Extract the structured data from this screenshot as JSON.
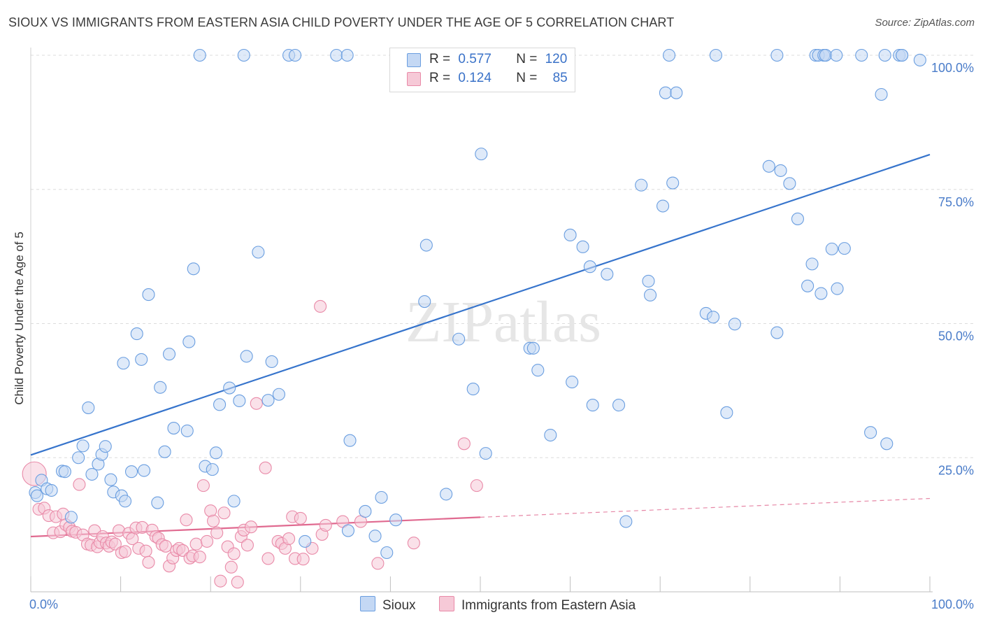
{
  "title": "SIOUX VS IMMIGRANTS FROM EASTERN ASIA CHILD POVERTY UNDER THE AGE OF 5 CORRELATION CHART",
  "source": "Source: ZipAtlas.com",
  "watermark": "ZIPatlas",
  "colors": {
    "blue": "#6a9ee0",
    "blue_fill": "#c4d8f4",
    "blue_line": "#3674cc",
    "pink": "#e98aa8",
    "pink_fill": "#f6c9d7",
    "pink_line": "#e06a90",
    "tick_label": "#4a7cc9"
  },
  "legend": {
    "rows": [
      {
        "r_label": "R =",
        "r_value": "0.577",
        "n_label": "N =",
        "n_value": "120"
      },
      {
        "r_label": "R =",
        "r_value": "0.124",
        "n_label": "N =",
        "n_value": "85"
      }
    ]
  },
  "bottom_legend": [
    "Sioux",
    "Immigrants from Eastern Asia"
  ],
  "chart_data": {
    "type": "scatter",
    "title": "SIOUX VS IMMIGRANTS FROM EASTERN ASIA CHILD POVERTY UNDER THE AGE OF 5 CORRELATION CHART",
    "xlabel": "",
    "ylabel": "Child Poverty Under the Age of 5",
    "xlim": [
      0,
      100
    ],
    "ylim": [
      0,
      100
    ],
    "x_tick_labels": [
      "0.0%",
      "100.0%"
    ],
    "y_tick_labels": [
      {
        "value": 100,
        "label": "100.0%"
      },
      {
        "value": 75,
        "label": "75.0%"
      },
      {
        "value": 50,
        "label": "50.0%"
      },
      {
        "value": 25,
        "label": "25.0%"
      }
    ],
    "series": [
      {
        "name": "Sioux",
        "color": "#6a9ee0",
        "trend": {
          "x0": 0,
          "y0": 25.5,
          "x1": 100,
          "y1": 81.5
        },
        "points": [
          [
            0.5,
            18.5
          ],
          [
            0.7,
            17.9
          ],
          [
            1.2,
            20.8
          ],
          [
            1.8,
            19.2
          ],
          [
            2.3,
            18.9
          ],
          [
            3.5,
            22.5
          ],
          [
            3.8,
            22.4
          ],
          [
            4.5,
            13.9
          ],
          [
            5.3,
            25.0
          ],
          [
            5.8,
            27.2
          ],
          [
            6.4,
            34.3
          ],
          [
            6.8,
            21.9
          ],
          [
            7.5,
            23.8
          ],
          [
            7.9,
            25.6
          ],
          [
            8.3,
            27.1
          ],
          [
            8.9,
            20.9
          ],
          [
            9.2,
            18.6
          ],
          [
            10.1,
            17.9
          ],
          [
            10.5,
            16.9
          ],
          [
            10.3,
            42.6
          ],
          [
            11.2,
            22.4
          ],
          [
            11.8,
            48.1
          ],
          [
            12.3,
            43.3
          ],
          [
            12.6,
            22.6
          ],
          [
            13.1,
            55.4
          ],
          [
            14.1,
            16.6
          ],
          [
            14.4,
            38.1
          ],
          [
            14.9,
            26.1
          ],
          [
            15.4,
            44.3
          ],
          [
            15.9,
            30.5
          ],
          [
            17.4,
            30.0
          ],
          [
            17.6,
            46.6
          ],
          [
            18.1,
            60.2
          ],
          [
            19.4,
            23.4
          ],
          [
            20.2,
            22.8
          ],
          [
            20.6,
            25.9
          ],
          [
            21.0,
            34.9
          ],
          [
            22.1,
            38.0
          ],
          [
            22.6,
            16.9
          ],
          [
            23.2,
            35.6
          ],
          [
            24.0,
            43.9
          ],
          [
            25.3,
            63.3
          ],
          [
            26.4,
            35.7
          ],
          [
            26.8,
            42.9
          ],
          [
            27.6,
            36.8
          ],
          [
            30.5,
            9.4
          ],
          [
            35.3,
            11.4
          ],
          [
            35.5,
            28.2
          ],
          [
            37.2,
            15.0
          ],
          [
            38.3,
            10.4
          ],
          [
            39.0,
            17.6
          ],
          [
            39.6,
            7.3
          ],
          [
            40.6,
            13.4
          ],
          [
            43.8,
            54.1
          ],
          [
            44.0,
            64.6
          ],
          [
            46.2,
            18.2
          ],
          [
            47.6,
            47.1
          ],
          [
            49.2,
            37.8
          ],
          [
            50.1,
            81.6
          ],
          [
            50.6,
            25.8
          ],
          [
            55.5,
            45.4
          ],
          [
            55.9,
            45.4
          ],
          [
            56.4,
            41.3
          ],
          [
            57.8,
            29.2
          ],
          [
            60.0,
            66.5
          ],
          [
            60.2,
            39.1
          ],
          [
            61.4,
            64.3
          ],
          [
            62.2,
            60.6
          ],
          [
            62.5,
            34.8
          ],
          [
            64.1,
            59.2
          ],
          [
            65.4,
            34.8
          ],
          [
            66.2,
            13.1
          ],
          [
            67.9,
            75.8
          ],
          [
            68.7,
            57.9
          ],
          [
            68.9,
            55.3
          ],
          [
            70.3,
            71.9
          ],
          [
            70.6,
            93.0
          ],
          [
            71.4,
            76.2
          ],
          [
            71.8,
            93.0
          ],
          [
            75.1,
            51.9
          ],
          [
            75.9,
            51.2
          ],
          [
            77.4,
            33.4
          ],
          [
            78.3,
            49.9
          ],
          [
            82.1,
            79.3
          ],
          [
            83.0,
            48.3
          ],
          [
            83.4,
            78.5
          ],
          [
            84.4,
            76.1
          ],
          [
            85.3,
            69.5
          ],
          [
            86.4,
            57.0
          ],
          [
            86.9,
            61.1
          ],
          [
            87.3,
            100.0
          ],
          [
            87.9,
            55.6
          ],
          [
            88.4,
            100.0
          ],
          [
            89.1,
            63.9
          ],
          [
            89.7,
            56.5
          ],
          [
            90.5,
            64.0
          ],
          [
            93.4,
            29.7
          ],
          [
            94.6,
            92.7
          ],
          [
            95.2,
            27.6
          ],
          [
            96.6,
            100.0
          ],
          [
            96.9,
            100.0
          ],
          [
            98.9,
            99.1
          ],
          [
            18.8,
            100.0
          ],
          [
            23.7,
            100.0
          ],
          [
            28.7,
            100.0
          ],
          [
            29.4,
            100.0
          ],
          [
            34.0,
            100.0
          ],
          [
            35.2,
            100.0
          ],
          [
            47.9,
            100.0
          ],
          [
            49.4,
            100.0
          ],
          [
            71.0,
            100.0
          ],
          [
            76.2,
            100.0
          ],
          [
            83.0,
            100.0
          ],
          [
            87.6,
            100.0
          ],
          [
            88.2,
            100.0
          ],
          [
            88.4,
            100.0
          ],
          [
            89.6,
            100.0
          ],
          [
            92.4,
            100.0
          ],
          [
            95.0,
            100.0
          ],
          [
            96.9,
            100.0
          ]
        ]
      },
      {
        "name": "Immigrants from Eastern Asia",
        "color": "#e98aa8",
        "trend": {
          "x0": 0,
          "y0": 10.3,
          "x1": 50,
          "y1": 13.9,
          "dashed_to": {
            "x": 100,
            "y": 17.4
          }
        },
        "points": [
          [
            0.4,
            22.0
          ],
          [
            0.9,
            15.4
          ],
          [
            1.5,
            15.6
          ],
          [
            2.0,
            14.2
          ],
          [
            2.5,
            11.0
          ],
          [
            2.8,
            14.0
          ],
          [
            3.3,
            11.2
          ],
          [
            3.6,
            14.5
          ],
          [
            3.9,
            12.5
          ],
          [
            4.3,
            12.0
          ],
          [
            4.6,
            11.3
          ],
          [
            5.0,
            11.1
          ],
          [
            5.4,
            20.0
          ],
          [
            5.8,
            10.6
          ],
          [
            6.3,
            8.9
          ],
          [
            6.7,
            8.7
          ],
          [
            7.1,
            11.4
          ],
          [
            7.4,
            8.4
          ],
          [
            7.7,
            9.2
          ],
          [
            8.0,
            10.3
          ],
          [
            8.4,
            9.1
          ],
          [
            8.7,
            8.5
          ],
          [
            9.0,
            9.3
          ],
          [
            9.4,
            8.9
          ],
          [
            9.8,
            11.4
          ],
          [
            10.1,
            7.3
          ],
          [
            10.5,
            7.5
          ],
          [
            10.9,
            10.9
          ],
          [
            11.3,
            9.9
          ],
          [
            11.7,
            11.9
          ],
          [
            12.0,
            8.1
          ],
          [
            12.4,
            12.0
          ],
          [
            12.8,
            7.6
          ],
          [
            13.1,
            5.5
          ],
          [
            13.5,
            11.5
          ],
          [
            13.9,
            10.3
          ],
          [
            14.2,
            10.0
          ],
          [
            14.6,
            8.8
          ],
          [
            15.0,
            8.5
          ],
          [
            15.4,
            4.8
          ],
          [
            15.8,
            6.3
          ],
          [
            16.2,
            7.7
          ],
          [
            16.5,
            8.1
          ],
          [
            16.9,
            7.7
          ],
          [
            17.3,
            13.4
          ],
          [
            17.7,
            6.3
          ],
          [
            18.0,
            6.7
          ],
          [
            18.4,
            8.9
          ],
          [
            18.8,
            6.5
          ],
          [
            19.2,
            19.8
          ],
          [
            19.6,
            9.4
          ],
          [
            20.0,
            15.1
          ],
          [
            20.3,
            13.2
          ],
          [
            20.7,
            11.0
          ],
          [
            21.1,
            2.0
          ],
          [
            21.5,
            14.7
          ],
          [
            21.9,
            8.4
          ],
          [
            22.3,
            4.6
          ],
          [
            22.6,
            7.1
          ],
          [
            23.0,
            1.8
          ],
          [
            23.4,
            10.3
          ],
          [
            23.7,
            11.5
          ],
          [
            24.1,
            8.7
          ],
          [
            24.5,
            12.1
          ],
          [
            25.1,
            35.1
          ],
          [
            26.1,
            23.1
          ],
          [
            26.4,
            6.2
          ],
          [
            27.5,
            9.4
          ],
          [
            27.9,
            9.0
          ],
          [
            28.3,
            8.1
          ],
          [
            28.7,
            9.9
          ],
          [
            29.1,
            14.0
          ],
          [
            29.4,
            6.2
          ],
          [
            30.0,
            13.7
          ],
          [
            30.3,
            6.1
          ],
          [
            31.3,
            8.1
          ],
          [
            32.2,
            53.2
          ],
          [
            32.4,
            10.7
          ],
          [
            32.8,
            12.4
          ],
          [
            34.7,
            13.1
          ],
          [
            36.7,
            13.1
          ],
          [
            38.6,
            5.3
          ],
          [
            42.6,
            9.1
          ],
          [
            48.2,
            27.6
          ],
          [
            49.6,
            19.8
          ]
        ]
      }
    ]
  }
}
